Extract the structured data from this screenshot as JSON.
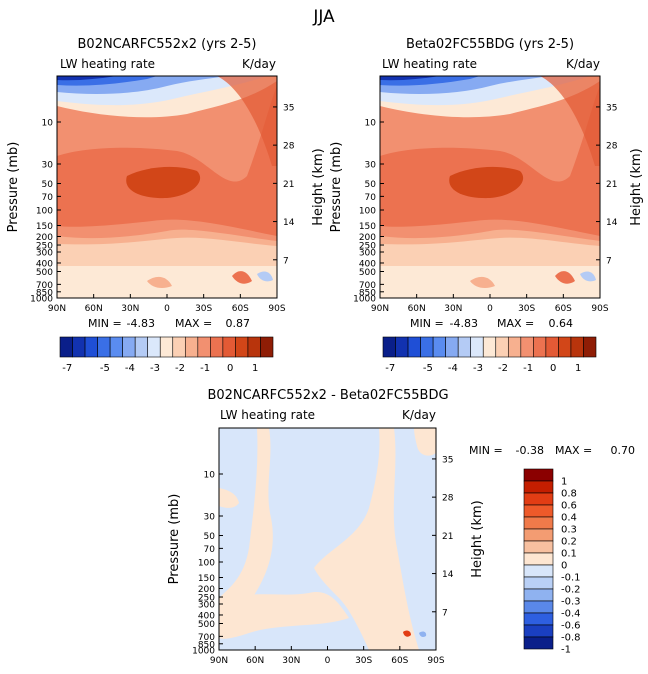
{
  "page_title": "JJA",
  "chart_data": [
    {
      "type": "heatmap",
      "title": "B02NCARFC552x2 (yrs 2-5)",
      "subtitle_left": "LW heating rate",
      "subtitle_right": "K/day",
      "xlabel": "",
      "ylabel": "Pressure (mb)",
      "ylabel_right": "Height (km)",
      "x_ticks": [
        "90N",
        "60N",
        "30N",
        "0",
        "30S",
        "60S",
        "90S"
      ],
      "y_ticks": [
        "10",
        "30",
        "50",
        "70",
        "100",
        "150",
        "200",
        "250",
        "300",
        "400",
        "500",
        "700",
        "850",
        "1000"
      ],
      "y_ticks_right": [
        "35",
        "28",
        "21",
        "14",
        "7"
      ],
      "ylim_mb": [
        1000,
        3
      ],
      "stats": {
        "min_label": "MIN =",
        "min": "-4.83",
        "max_label": "MAX =",
        "max": "0.87"
      },
      "contour_levels": [
        -7,
        -6.5,
        -6,
        -5.5,
        -5,
        -4.5,
        -4,
        -3.5,
        -3,
        -2.5,
        -2,
        -1.5,
        -1,
        -0.5,
        0,
        0.5,
        1,
        1.5
      ],
      "colorbar_labels": [
        "-7",
        "-5",
        "-4",
        "-3",
        "-2",
        "-1",
        "0",
        "1"
      ]
    },
    {
      "type": "heatmap",
      "title": "Beta02FC55BDG (yrs 2-5)",
      "subtitle_left": "LW heating rate",
      "subtitle_right": "K/day",
      "xlabel": "",
      "ylabel": "Pressure (mb)",
      "ylabel_right": "Height (km)",
      "x_ticks": [
        "90N",
        "60N",
        "30N",
        "0",
        "30S",
        "60S",
        "90S"
      ],
      "y_ticks": [
        "10",
        "30",
        "50",
        "70",
        "100",
        "150",
        "200",
        "250",
        "300",
        "400",
        "500",
        "700",
        "850",
        "1000"
      ],
      "y_ticks_right": [
        "35",
        "28",
        "21",
        "14",
        "7"
      ],
      "ylim_mb": [
        1000,
        3
      ],
      "stats": {
        "min_label": "MIN =",
        "min": "-4.83",
        "max_label": "MAX =",
        "max": "0.64"
      },
      "contour_levels": [
        -7,
        -6.5,
        -6,
        -5.5,
        -5,
        -4.5,
        -4,
        -3.5,
        -3,
        -2.5,
        -2,
        -1.5,
        -1,
        -0.5,
        0,
        0.5,
        1,
        1.5
      ],
      "colorbar_labels": [
        "-7",
        "-5",
        "-4",
        "-3",
        "-2",
        "-1",
        "0",
        "1"
      ]
    },
    {
      "type": "heatmap",
      "title": "B02NCARFC552x2 - Beta02FC55BDG",
      "subtitle_left": "LW heating rate",
      "subtitle_right": "K/day",
      "xlabel": "",
      "ylabel": "Pressure (mb)",
      "ylabel_right": "Height (km)",
      "x_ticks": [
        "90N",
        "60N",
        "30N",
        "0",
        "30S",
        "60S",
        "90S"
      ],
      "y_ticks": [
        "10",
        "30",
        "50",
        "70",
        "100",
        "150",
        "200",
        "250",
        "300",
        "400",
        "500",
        "700",
        "850",
        "1000"
      ],
      "y_ticks_right": [
        "35",
        "28",
        "21",
        "14",
        "7"
      ],
      "ylim_mb": [
        1000,
        3
      ],
      "stats": {
        "min_label": "MIN =",
        "min": "-0.38",
        "max_label": "MAX =",
        "max": "0.70"
      },
      "contour_levels": [
        -1,
        -0.8,
        -0.6,
        -0.4,
        -0.3,
        -0.2,
        -0.1,
        0,
        0.1,
        0.2,
        0.3,
        0.4,
        0.6,
        0.8,
        1
      ],
      "colorbar_labels": [
        "1",
        "0.8",
        "0.6",
        "0.4",
        "0.3",
        "0.2",
        "0.1",
        "0",
        "-0.1",
        "-0.2",
        "-0.3",
        "-0.4",
        "-0.6",
        "-0.8",
        "-1"
      ]
    }
  ],
  "colors": {
    "full_scale": [
      "#0a1f8a",
      "#1232b0",
      "#1f4fd6",
      "#3a6fe6",
      "#5a8cf0",
      "#86aaf2",
      "#b4cbf5",
      "#dbe8fb",
      "#fde9d6",
      "#fbd0b4",
      "#f7b08f",
      "#f29070",
      "#ec7250",
      "#e35a35",
      "#d24618",
      "#b8340c",
      "#8f1d05"
    ],
    "diff_scale": [
      "#8b0000",
      "#c41e00",
      "#e23d14",
      "#ee5a2a",
      "#f07a4a",
      "#f39c72",
      "#f7c0a0",
      "#fde6d2",
      "#d8e6fa",
      "#b9d0f6",
      "#8fb2f0",
      "#5a88e8",
      "#2e5fe0",
      "#1a3fc0",
      "#0a1f8a"
    ],
    "frame": "#000000"
  }
}
